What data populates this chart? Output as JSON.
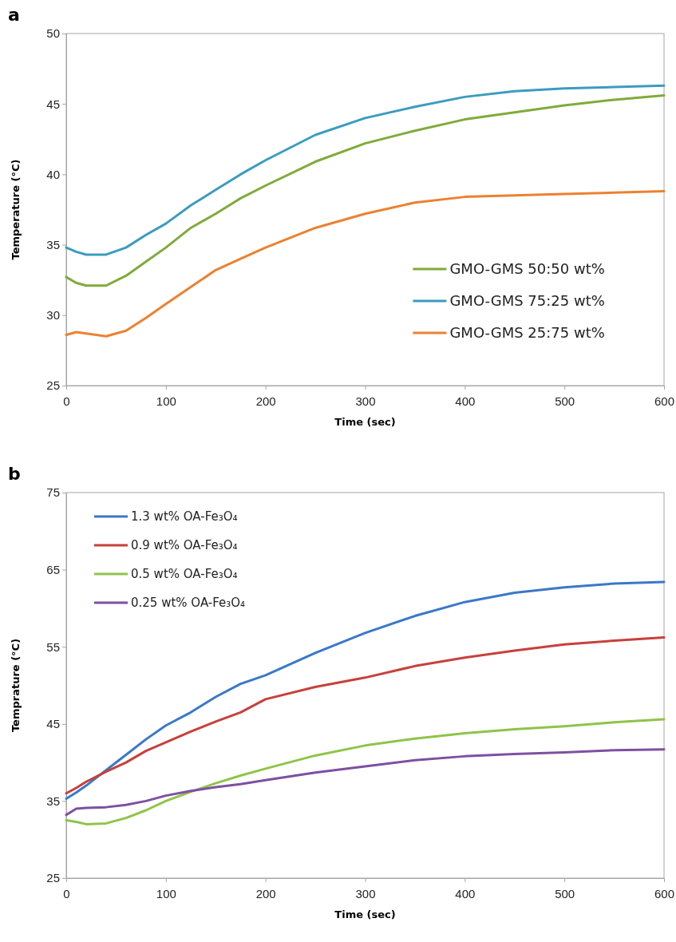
{
  "chart_data": [
    {
      "type": "line",
      "title": "a",
      "xlabel": "Time (sec)",
      "ylabel": "Temperature (°C)",
      "x": [
        0,
        10,
        20,
        40,
        60,
        80,
        100,
        125,
        150,
        175,
        200,
        250,
        300,
        350,
        400,
        450,
        500,
        550,
        600
      ],
      "xlim": [
        0,
        600
      ],
      "xticks": [
        0,
        100,
        200,
        300,
        400,
        500,
        600
      ],
      "ylim": [
        25,
        50
      ],
      "yticks": [
        25,
        30,
        35,
        40,
        45,
        50
      ],
      "grid": false,
      "legend": "bottom right",
      "marker": "none",
      "line_style": "solid",
      "series": [
        {
          "name": "GMO-GMS 50:50 wt%",
          "color": "#7fab3a",
          "values": [
            32.7,
            32.3,
            32.1,
            32.1,
            32.8,
            33.8,
            34.8,
            36.2,
            37.2,
            38.3,
            39.2,
            40.9,
            42.2,
            43.1,
            43.9,
            44.4,
            44.9,
            45.3,
            45.6
          ]
        },
        {
          "name": "GMO-GMS 75:25 wt%",
          "color": "#3b9cbf",
          "values": [
            34.8,
            34.5,
            34.3,
            34.3,
            34.8,
            35.7,
            36.5,
            37.8,
            38.9,
            40.0,
            41.0,
            42.8,
            44.0,
            44.8,
            45.5,
            45.9,
            46.1,
            46.2,
            46.3
          ]
        },
        {
          "name": "GMO-GMS 25:75 wt%",
          "color": "#ec8130",
          "values": [
            28.6,
            28.8,
            28.7,
            28.5,
            28.9,
            29.8,
            30.8,
            32.0,
            33.2,
            34.0,
            34.8,
            36.2,
            37.2,
            38.0,
            38.4,
            38.5,
            38.6,
            38.7,
            38.8
          ]
        }
      ]
    },
    {
      "type": "line",
      "title": "b",
      "xlabel": "Time (sec)",
      "ylabel": "Temprature (°C)",
      "x": [
        0,
        10,
        20,
        40,
        60,
        80,
        100,
        125,
        150,
        175,
        200,
        250,
        300,
        350,
        400,
        450,
        500,
        550,
        600
      ],
      "xlim": [
        0,
        600
      ],
      "xticks": [
        0,
        100,
        200,
        300,
        400,
        500,
        600
      ],
      "ylim": [
        25,
        75
      ],
      "yticks": [
        25,
        35,
        45,
        55,
        65,
        75
      ],
      "grid": false,
      "legend": "top left",
      "marker": "none",
      "line_style": "solid",
      "series": [
        {
          "name": "1.3 wt% OA-Fe₃O₄",
          "color": "#3a78c9",
          "values": [
            35.3,
            36.1,
            37,
            39,
            41,
            43,
            44.8,
            46.5,
            48.5,
            50.2,
            51.3,
            54.2,
            56.8,
            59,
            60.8,
            62,
            62.7,
            63.2,
            63.4
          ]
        },
        {
          "name": "0.9 wt% OA-Fe₃O₄",
          "color": "#c8403b",
          "values": [
            36,
            36.7,
            37.5,
            38.8,
            40,
            41.5,
            42.6,
            44,
            45.3,
            46.5,
            48.2,
            49.8,
            51,
            52.5,
            53.6,
            54.5,
            55.3,
            55.8,
            56.2
          ]
        },
        {
          "name": "0.5 wt% OA-Fe₃O₄",
          "color": "#8fc448",
          "values": [
            32.5,
            32.3,
            32.0,
            32.1,
            32.8,
            33.8,
            35.0,
            36.2,
            37.3,
            38.3,
            39.2,
            40.9,
            42.2,
            43.1,
            43.8,
            44.3,
            44.7,
            45.2,
            45.6
          ]
        },
        {
          "name": "0.25 wt% OA-Fe₃O₄",
          "color": "#7d50a0",
          "values": [
            33.2,
            34,
            34.1,
            34.2,
            34.5,
            35,
            35.7,
            36.3,
            36.8,
            37.2,
            37.7,
            38.7,
            39.5,
            40.3,
            40.8,
            41.1,
            41.3,
            41.6,
            41.7
          ]
        }
      ]
    }
  ]
}
